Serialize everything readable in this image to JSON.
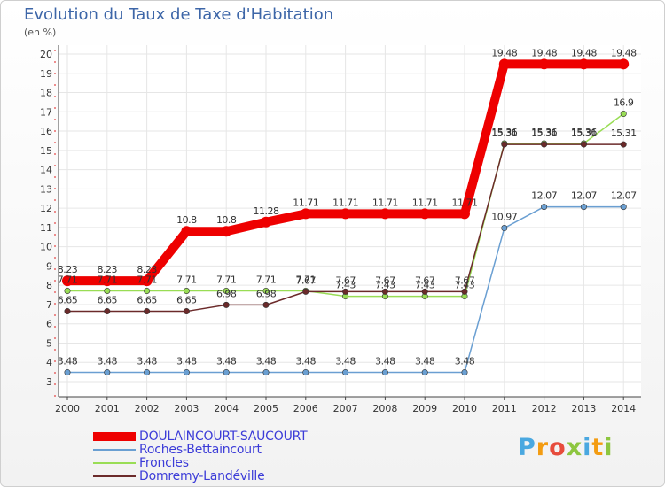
{
  "chart_data": {
    "type": "line",
    "title": "Evolution du Taux de Taxe d'Habitation",
    "subtitle": "(en %)",
    "x": [
      "2000",
      "2001",
      "2002",
      "2003",
      "2004",
      "2005",
      "2006",
      "2007",
      "2008",
      "2009",
      "2010",
      "2011",
      "2012",
      "2013",
      "2014"
    ],
    "ylim": [
      3,
      20
    ],
    "yticks": [
      3,
      4,
      5,
      6,
      7,
      8,
      9,
      10,
      11,
      12,
      13,
      14,
      15,
      16,
      17,
      18,
      19,
      20
    ],
    "series": [
      {
        "name": "DOULAINCOURT-SAUCOURT",
        "color": "#ee0000",
        "values": [
          8.23,
          8.23,
          8.23,
          10.8,
          10.8,
          11.28,
          11.71,
          11.71,
          11.71,
          11.71,
          11.71,
          19.48,
          19.48,
          19.48,
          19.48
        ],
        "labels": [
          "8.23",
          "8.23",
          "8.23",
          "10.8",
          "10.8",
          "11.28",
          "11.71",
          "11.71",
          "11.71",
          "11.71",
          "11.71",
          "19.48",
          "19.48",
          "19.48",
          "19.48"
        ]
      },
      {
        "name": "Roches-Bettaincourt",
        "color": "#6a9fd2",
        "values": [
          3.48,
          3.48,
          3.48,
          3.48,
          3.48,
          3.48,
          3.48,
          3.48,
          3.48,
          3.48,
          3.48,
          10.97,
          12.07,
          12.07,
          12.07
        ],
        "labels": [
          "3.48",
          "3.48",
          "3.48",
          "3.48",
          "3.48",
          "3.48",
          "3.48",
          "3.48",
          "3.48",
          "3.48",
          "3.48",
          "10.97",
          "12.07",
          "12.07",
          "12.07"
        ]
      },
      {
        "name": "Froncles",
        "color": "#99dd55",
        "values": [
          7.71,
          7.71,
          7.71,
          7.71,
          7.71,
          7.71,
          7.71,
          7.43,
          7.43,
          7.43,
          7.43,
          15.36,
          15.36,
          15.36,
          16.9
        ],
        "labels": [
          "7.71",
          "7.71",
          "7.71",
          "7.71",
          "7.71",
          "7.71",
          "7.71",
          "7.43",
          "7.43",
          "7.43",
          "7.43",
          "15.36",
          "15.36",
          "15.36",
          "16.9"
        ]
      },
      {
        "name": "Domremy-Landéville",
        "color": "#6b2a2a",
        "values": [
          6.65,
          6.65,
          6.65,
          6.65,
          6.98,
          6.98,
          7.67,
          7.67,
          7.67,
          7.67,
          7.67,
          15.31,
          15.31,
          15.31,
          15.31
        ],
        "labels": [
          "6.65",
          "6.65",
          "6.65",
          "6.65",
          "6.98",
          "6.98",
          "7.67",
          "7.67",
          "7.67",
          "7.67",
          "7.67",
          "15.31",
          "15.31",
          "15.31",
          "15.31"
        ]
      }
    ]
  },
  "logo": {
    "text": "Proxiti",
    "colors": [
      "#4aa8e0",
      "#f39c12",
      "#e74c3c",
      "#8dc63f",
      "#4aa8e0",
      "#f39c12",
      "#8dc63f"
    ]
  }
}
